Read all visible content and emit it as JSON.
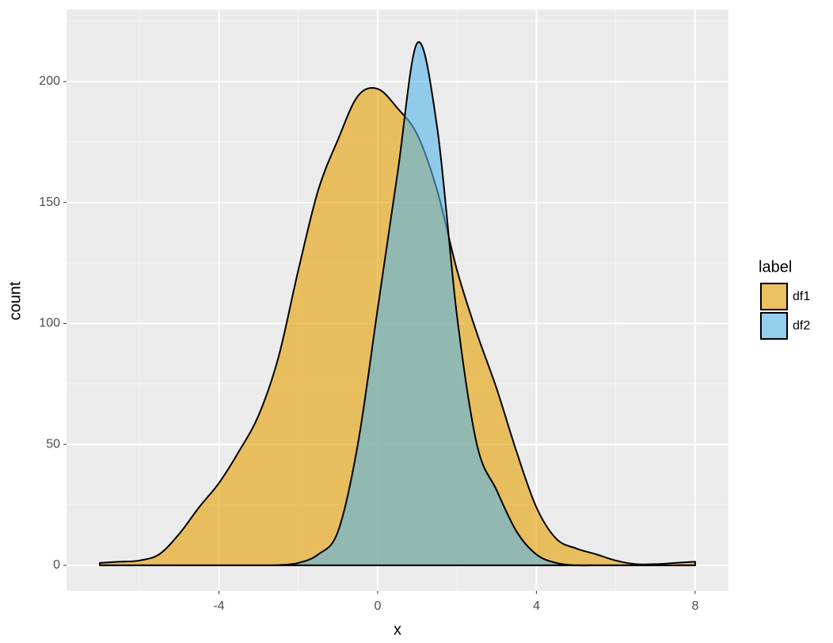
{
  "chart_data": {
    "type": "area",
    "x_label": "x",
    "y_label": "count",
    "x": [
      -7,
      -6.5,
      -6,
      -5.5,
      -5,
      -4.5,
      -4,
      -3.5,
      -3,
      -2.5,
      -2,
      -1.5,
      -1,
      -0.5,
      0,
      0.5,
      1,
      1.5,
      2,
      2.5,
      3,
      3.5,
      4,
      4.5,
      5,
      5.5,
      6,
      6.5,
      7,
      7.5,
      8
    ],
    "series": [
      {
        "name": "df1",
        "color": "#E69F00",
        "values": [
          1,
          1.5,
          2,
          4.6,
          13,
          24,
          34,
          47,
          62,
          86,
          122,
          155,
          176,
          194,
          197,
          189,
          178,
          155,
          122,
          96,
          73,
          47,
          24,
          11,
          7,
          4.6,
          2,
          0.5,
          0.5,
          1,
          1.5
        ]
      },
      {
        "name": "df2",
        "color": "#56B4E9",
        "values": [
          0,
          0,
          0,
          0,
          0,
          0,
          0,
          0,
          0,
          0.1,
          1,
          4.5,
          14,
          50,
          106,
          162,
          216,
          181,
          103,
          50,
          31,
          14,
          4.5,
          1,
          0,
          0,
          0,
          0,
          0,
          0,
          0
        ]
      }
    ],
    "alpha": 0.6,
    "legend_title": "label",
    "legend_position": "right",
    "xlim": [
      -7.84,
      8.84
    ],
    "xticks": [
      -4,
      0,
      4,
      8
    ],
    "ylim": [
      -10.5,
      229.8
    ],
    "yticks": [
      0,
      50,
      100,
      150,
      200
    ],
    "grid": true
  }
}
